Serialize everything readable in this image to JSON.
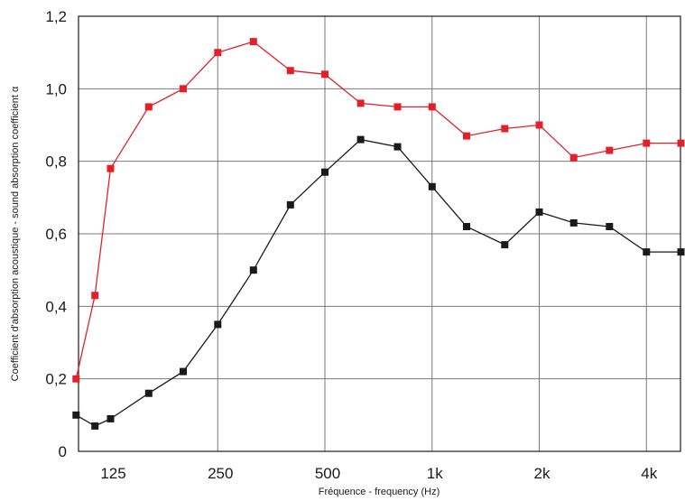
{
  "chart_data": {
    "type": "line",
    "xlabel": "Fréquence - frequency  (Hz)",
    "ylabel": "Coefficient d'absorption acoustique - sound absorption coefficient α",
    "x": [
      100,
      125,
      160,
      200,
      250,
      315,
      400,
      500,
      630,
      800,
      1000,
      1250,
      1600,
      2000,
      2500,
      3150,
      4000,
      5000
    ],
    "xticks": [
      {
        "value": 125,
        "label": "125"
      },
      {
        "value": 250,
        "label": "250"
      },
      {
        "value": 500,
        "label": "500"
      },
      {
        "value": 1000,
        "label": "1k"
      },
      {
        "value": 2000,
        "label": "2k"
      },
      {
        "value": 4000,
        "label": "4k"
      }
    ],
    "yticks": [
      {
        "value": 0,
        "label": "0"
      },
      {
        "value": 0.2,
        "label": "0,2"
      },
      {
        "value": 0.4,
        "label": "0,4"
      },
      {
        "value": 0.6,
        "label": "0,6"
      },
      {
        "value": 0.8,
        "label": "0,8"
      },
      {
        "value": 1.0,
        "label": "1,0"
      },
      {
        "value": 1.2,
        "label": "1,2"
      }
    ],
    "xscale": "log",
    "ylim": [
      0,
      1.2
    ],
    "grid": true,
    "series": [
      {
        "color": "#e3202a",
        "marker": "square",
        "x": [
          100,
          113,
          125,
          160,
          200,
          250,
          315,
          400,
          500,
          630,
          800,
          1000,
          1250,
          1600,
          2000,
          2500,
          3150,
          4000,
          5000
        ],
        "values": [
          0.2,
          0.43,
          0.78,
          0.95,
          1.0,
          1.1,
          1.13,
          1.05,
          1.04,
          0.96,
          0.95,
          0.95,
          0.87,
          0.89,
          0.9,
          0.81,
          0.83,
          0.85,
          0.85
        ]
      },
      {
        "color": "#1a1a1a",
        "marker": "square",
        "x": [
          100,
          113,
          125,
          160,
          200,
          250,
          315,
          400,
          500,
          630,
          800,
          1000,
          1250,
          1600,
          2000,
          2500,
          3150,
          4000,
          5000
        ],
        "values": [
          0.1,
          0.07,
          0.09,
          0.16,
          0.22,
          0.35,
          0.5,
          0.68,
          0.77,
          0.86,
          0.84,
          0.73,
          0.62,
          0.57,
          0.66,
          0.63,
          0.62,
          0.55,
          0.55
        ]
      }
    ]
  }
}
